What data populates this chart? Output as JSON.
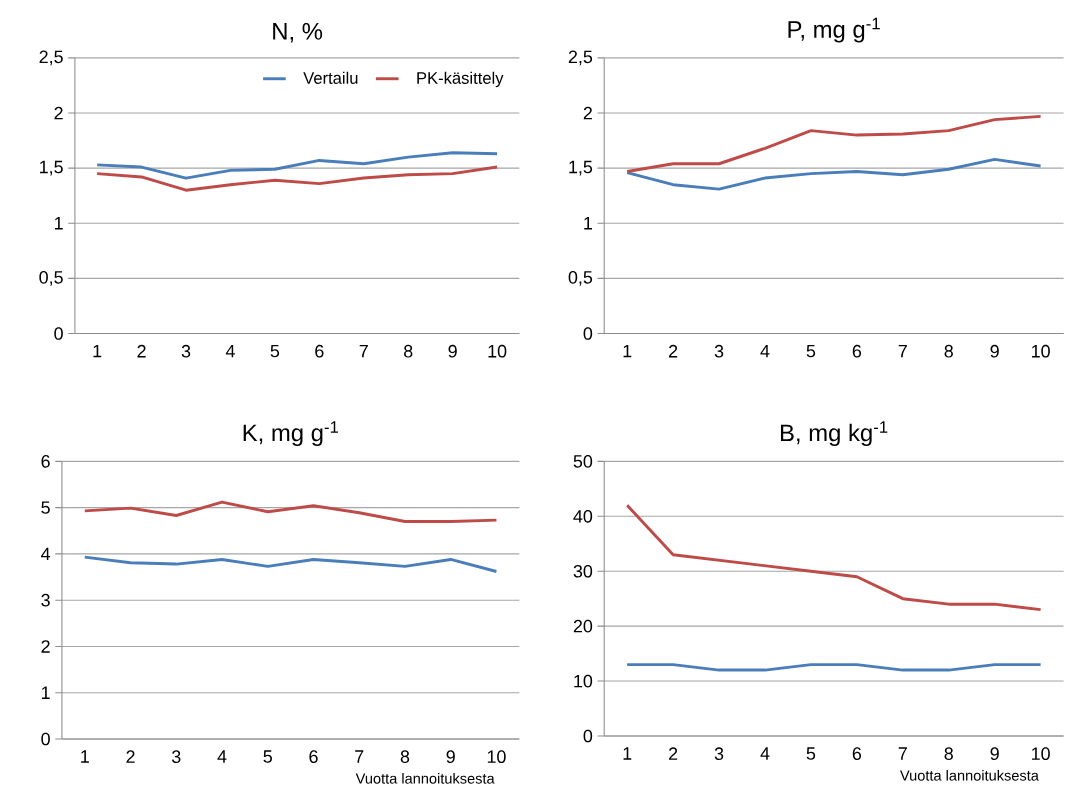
{
  "chart_data": [
    {
      "type": "line",
      "title": "N, %",
      "categories": [
        "1",
        "2",
        "3",
        "4",
        "5",
        "6",
        "7",
        "8",
        "9",
        "10"
      ],
      "ylim": [
        0,
        2.5
      ],
      "yticks": [
        0,
        {
          "value": 0.5,
          "label": "0,5"
        },
        1,
        {
          "value": 1.5,
          "label": "1,5"
        },
        2,
        {
          "value": 2.5,
          "label": "2,5"
        }
      ],
      "grid": "y",
      "legend": "top right",
      "marker": "none",
      "series": [
        {
          "name": "Vertailu",
          "color": "#4a7ebb",
          "values": [
            1.53,
            1.51,
            1.41,
            1.48,
            1.49,
            1.57,
            1.54,
            1.6,
            1.64,
            1.63
          ]
        },
        {
          "name": "PK-käsittely",
          "color": "#be4b48",
          "values": [
            1.45,
            1.42,
            1.3,
            1.35,
            1.39,
            1.36,
            1.41,
            1.44,
            1.45,
            1.51
          ]
        }
      ]
    },
    {
      "type": "line",
      "title": "P, mg g$^{-1}$",
      "categories": [
        "1",
        "2",
        "3",
        "4",
        "5",
        "6",
        "7",
        "8",
        "9",
        "10"
      ],
      "ylim": [
        0,
        2.5
      ],
      "yticks": [
        0,
        {
          "value": 0.5,
          "label": "0,5"
        },
        1,
        {
          "value": 1.5,
          "label": "1,5"
        },
        2,
        {
          "value": 2.5,
          "label": "2,5"
        }
      ],
      "grid": "y",
      "marker": "none",
      "series": [
        {
          "color": "#4a7ebb",
          "values": [
            1.46,
            1.35,
            1.31,
            1.41,
            1.45,
            1.47,
            1.44,
            1.49,
            1.58,
            1.52
          ]
        },
        {
          "color": "#be4b48",
          "values": [
            1.47,
            1.54,
            1.54,
            1.68,
            1.84,
            1.8,
            1.81,
            1.84,
            1.94,
            1.97
          ]
        }
      ]
    },
    {
      "type": "line",
      "title": "K, mg g$^{-1}$",
      "xlabel": "Vuotta lannoituksesta",
      "categories": [
        "1",
        "2",
        "3",
        "4",
        "5",
        "6",
        "7",
        "8",
        "9",
        "10"
      ],
      "ylim": [
        0,
        6
      ],
      "yticks": [
        0,
        1,
        2,
        3,
        4,
        5,
        6
      ],
      "grid": "y",
      "marker": "none",
      "series": [
        {
          "color": "#4a7ebb",
          "values": [
            3.93,
            3.81,
            3.78,
            3.88,
            3.73,
            3.88,
            3.81,
            3.73,
            3.88,
            3.62
          ]
        },
        {
          "color": "#be4b48",
          "values": [
            4.93,
            4.99,
            4.83,
            5.12,
            4.91,
            5.04,
            4.89,
            4.7,
            4.7,
            4.73
          ]
        }
      ]
    },
    {
      "type": "line",
      "title": "B, mg kg$^{-1}$",
      "xlabel": "Vuotta lannoituksesta",
      "categories": [
        "1",
        "2",
        "3",
        "4",
        "5",
        "6",
        "7",
        "8",
        "9",
        "10"
      ],
      "ylim": [
        0,
        50
      ],
      "yticks": [
        0,
        10,
        20,
        30,
        40,
        50
      ],
      "grid": "y",
      "marker": "none",
      "series": [
        {
          "color": "#4a7ebb",
          "values": [
            13,
            13,
            12,
            12,
            13,
            13,
            12,
            12,
            13,
            13
          ]
        },
        {
          "color": "#be4b48",
          "values": [
            42,
            33,
            32,
            31,
            30,
            29,
            25,
            24,
            24,
            23
          ]
        }
      ]
    }
  ]
}
